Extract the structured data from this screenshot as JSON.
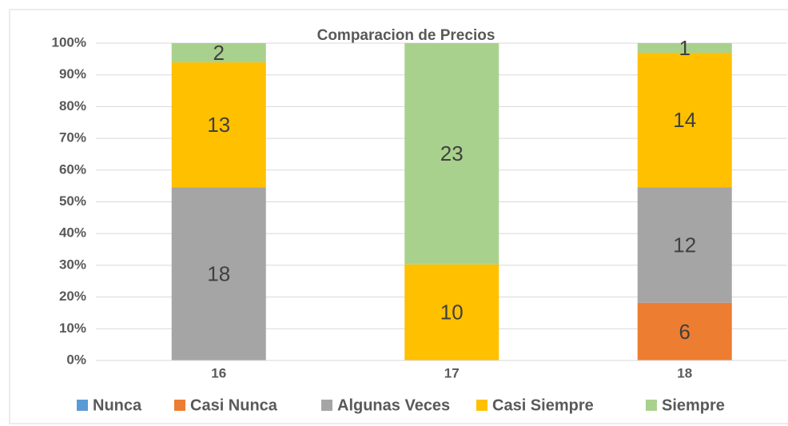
{
  "chart_data": {
    "type": "bar",
    "stacking": "percent",
    "title": "Comparacion de Precios",
    "categories": [
      "16",
      "17",
      "18"
    ],
    "series": [
      {
        "name": "Nunca",
        "color": "#5b9bd5",
        "values": [
          0,
          0,
          0
        ]
      },
      {
        "name": "Casi Nunca",
        "color": "#ed7d31",
        "values": [
          0,
          0,
          6
        ]
      },
      {
        "name": "Algunas Veces",
        "color": "#a5a5a5",
        "values": [
          18,
          0,
          12
        ]
      },
      {
        "name": "Casi Siempre",
        "color": "#ffc000",
        "values": [
          13,
          10,
          14
        ]
      },
      {
        "name": "Siempre",
        "color": "#a9d18e",
        "values": [
          2,
          23,
          1
        ]
      }
    ],
    "ylim": [
      0,
      100
    ],
    "yticks": [
      {
        "value": 0,
        "label": "0%"
      },
      {
        "value": 10,
        "label": "10%"
      },
      {
        "value": 20,
        "label": "20%"
      },
      {
        "value": 30,
        "label": "30%"
      },
      {
        "value": 40,
        "label": "40%"
      },
      {
        "value": 50,
        "label": "50%"
      },
      {
        "value": 60,
        "label": "60%"
      },
      {
        "value": 70,
        "label": "70%"
      },
      {
        "value": 80,
        "label": "80%"
      },
      {
        "value": 90,
        "label": "90%"
      },
      {
        "value": 100,
        "label": "100%"
      }
    ],
    "grid": true,
    "legend": "bottom"
  }
}
